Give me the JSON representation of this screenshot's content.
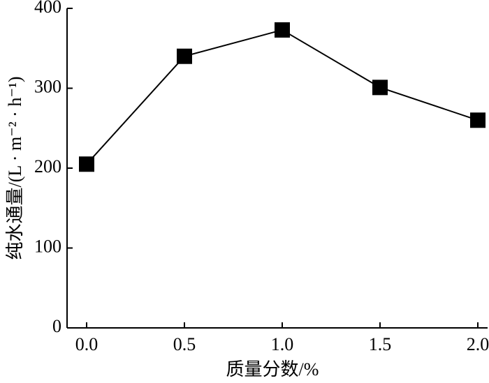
{
  "chart_data": {
    "type": "line",
    "xlabel": "质量分数/%",
    "ylabel": "纯水通量/(L · m⁻² · h⁻¹)",
    "x": [
      0,
      0.5,
      1,
      1.5,
      2
    ],
    "series": [
      {
        "color": "#000000",
        "values": [
          205,
          340,
          373,
          301,
          260
        ]
      }
    ],
    "xlim": [
      -0.1,
      2.05
    ],
    "ylim": [
      0,
      400
    ],
    "xticks": [
      {
        "value": 0,
        "label": "0.0"
      },
      0.5,
      {
        "value": 1,
        "label": "1.0"
      },
      1.5,
      {
        "value": 2,
        "label": "2.0"
      }
    ],
    "yticks": [
      0,
      100,
      200,
      300,
      400
    ],
    "grid": false
  }
}
